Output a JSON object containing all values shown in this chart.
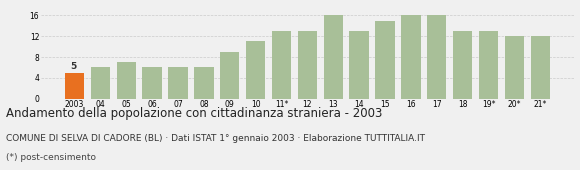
{
  "categories": [
    "2003",
    "04",
    "05",
    "06",
    "07",
    "08",
    "09",
    "10",
    "11*",
    "12",
    "13",
    "14",
    "15",
    "16",
    "17",
    "18",
    "19*",
    "20*",
    "21*"
  ],
  "values": [
    5,
    6,
    7,
    6,
    6,
    6,
    9,
    11,
    13,
    13,
    16,
    13,
    15,
    16,
    16,
    13,
    13,
    12,
    12
  ],
  "bar_colors": [
    "#e87020",
    "#a8bf98",
    "#a8bf98",
    "#a8bf98",
    "#a8bf98",
    "#a8bf98",
    "#a8bf98",
    "#a8bf98",
    "#a8bf98",
    "#a8bf98",
    "#a8bf98",
    "#a8bf98",
    "#a8bf98",
    "#a8bf98",
    "#a8bf98",
    "#a8bf98",
    "#a8bf98",
    "#a8bf98",
    "#a8bf98"
  ],
  "first_bar_label": "5",
  "ylim": [
    0,
    18
  ],
  "yticks": [
    0,
    4,
    8,
    12,
    16
  ],
  "title": "Andamento della popolazione con cittadinanza straniera - 2003",
  "subtitle": "COMUNE DI SELVA DI CADORE (BL) · Dati ISTAT 1° gennaio 2003 · Elaborazione TUTTITALIA.IT",
  "footnote": "(*) post-censimento",
  "background_color": "#f0f0f0",
  "plot_bg_color": "#f0f0f0",
  "grid_color": "#cccccc",
  "title_fontsize": 8.5,
  "subtitle_fontsize": 6.5,
  "footnote_fontsize": 6.5
}
